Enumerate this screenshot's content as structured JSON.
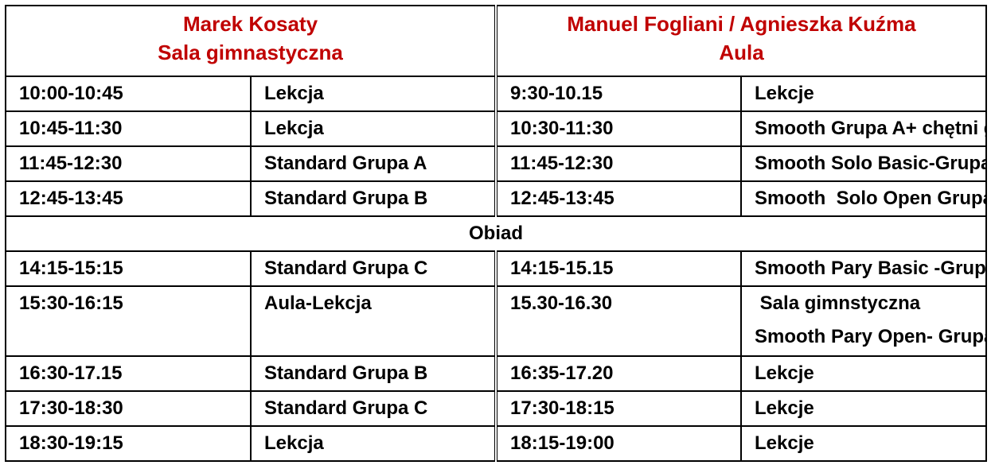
{
  "header": {
    "left": {
      "name": "Marek Kosaty",
      "room": "Sala gimnastyczna"
    },
    "right": {
      "name": "Manuel Fogliani / Agnieszka Kuźma",
      "room": "Aula"
    }
  },
  "colors": {
    "header_text": "#c00000",
    "text": "#000000"
  },
  "rows_before_lunch": [
    {
      "left_time": "10:00-10:45",
      "left_activity": "Lekcja",
      "right_time": "9:30-10.15",
      "right_activity": "Lekcje"
    },
    {
      "left_time": "10:45-11:30",
      "left_activity": "Lekcja",
      "right_time": "10:30-11:30",
      "right_activity": "Smooth Grupa A+ chętni gr.B"
    },
    {
      "left_time": "11:45-12:30",
      "left_activity": "Standard Grupa A",
      "right_time": "11:45-12:30",
      "right_activity": "Smooth Solo Basic-Grupa B i C"
    },
    {
      "left_time": "12:45-13:45",
      "left_activity": "Standard Grupa B",
      "right_time": "12:45-13:45",
      "right_activity": "Smooth  Solo Open Grupa  C"
    }
  ],
  "lunch": "Obiad",
  "rows_after_lunch": [
    {
      "left_time": "14:15-15:15",
      "left_activity": "Standard Grupa C",
      "right_time": "14:15-15.15",
      "right_activity": "Smooth Pary Basic -Grupa B"
    },
    {
      "left_time": "15:30-16:15",
      "left_activity": "Aula-Lekcja",
      "right_time": "15.30-16.30",
      "right_activity": " Sala gimnstyczna",
      "right_activity_2": "Smooth Pary Open- Grupa C"
    },
    {
      "left_time": "16:30-17.15",
      "left_activity": "Standard Grupa B",
      "right_time": "16:35-17.20",
      "right_activity": "Lekcje"
    },
    {
      "left_time": "17:30-18:30",
      "left_activity": "Standard Grupa C",
      "right_time": "17:30-18:15",
      "right_activity": "Lekcje"
    },
    {
      "left_time": "18:30-19:15",
      "left_activity": "Lekcja",
      "right_time": "18:15-19:00",
      "right_activity": "Lekcje"
    }
  ]
}
